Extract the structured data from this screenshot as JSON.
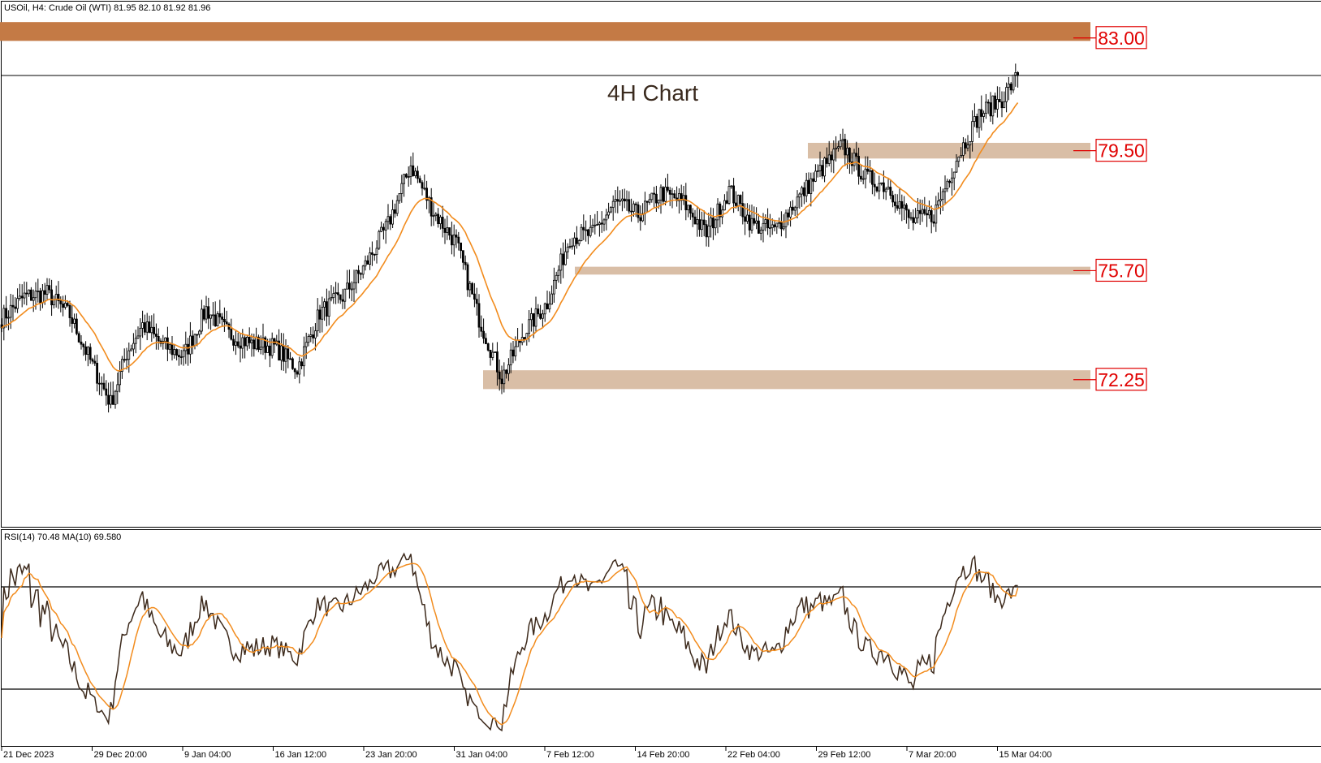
{
  "header": {
    "symbol_line": "USOil, H4:  Crude Oil (WTI)  81.95 82.10 81.92 81.96",
    "rsi_line": "RSI(14) 70.48 MA(10) 69.580"
  },
  "chart_data": {
    "type": "candlestick",
    "title": "4H Chart",
    "ylim": [
      68.0,
      84.25
    ],
    "x_tick_labels": [
      "21 Dec 2023",
      "29 Dec 20:00",
      "9 Jan 04:00",
      "16 Jan 12:00",
      "23 Jan 20:00",
      "31 Jan 04:00",
      "7 Feb 12:00",
      "14 Feb 20:00",
      "22 Feb 04:00",
      "29 Feb 12:00",
      "7 Mar 20:00",
      "15 Mar 04:00"
    ],
    "current_price": 81.96,
    "price_anchors": [
      [
        0,
        74.2
      ],
      [
        10,
        74.9
      ],
      [
        20,
        75.0
      ],
      [
        30,
        74.3
      ],
      [
        40,
        72.7
      ],
      [
        48,
        71.5
      ],
      [
        55,
        73.1
      ],
      [
        62,
        74.0
      ],
      [
        70,
        73.4
      ],
      [
        80,
        73.0
      ],
      [
        90,
        74.5
      ],
      [
        100,
        73.7
      ],
      [
        110,
        73.4
      ],
      [
        120,
        73.3
      ],
      [
        130,
        72.6
      ],
      [
        140,
        74.4
      ],
      [
        150,
        74.9
      ],
      [
        160,
        75.9
      ],
      [
        170,
        77.2
      ],
      [
        180,
        79.1
      ],
      [
        190,
        77.6
      ],
      [
        200,
        76.6
      ],
      [
        210,
        74.2
      ],
      [
        220,
        72.3
      ],
      [
        230,
        73.8
      ],
      [
        240,
        74.7
      ],
      [
        250,
        76.8
      ],
      [
        260,
        76.9
      ],
      [
        270,
        77.9
      ],
      [
        280,
        77.5
      ],
      [
        290,
        78.2
      ],
      [
        300,
        77.9
      ],
      [
        310,
        76.9
      ],
      [
        320,
        78.3
      ],
      [
        330,
        77.2
      ],
      [
        340,
        77.0
      ],
      [
        350,
        78.0
      ],
      [
        360,
        78.9
      ],
      [
        370,
        79.7
      ],
      [
        380,
        78.7
      ],
      [
        390,
        78.4
      ],
      [
        400,
        77.3
      ],
      [
        410,
        77.5
      ],
      [
        420,
        79.3
      ],
      [
        430,
        80.7
      ],
      [
        440,
        81.2
      ],
      [
        447,
        81.96
      ]
    ],
    "ema_period": 20,
    "levels": [
      {
        "label": "83.00",
        "band": [
          83.05,
          83.65
        ],
        "color": "#c47a45"
      },
      {
        "label": "79.50",
        "band": [
          79.3,
          79.8
        ],
        "color": "#d9bea6"
      },
      {
        "label": "75.70",
        "band": [
          75.6,
          75.85
        ],
        "color": "#d9bea6"
      },
      {
        "label": "72.25",
        "band": [
          71.95,
          72.55
        ],
        "color": "#d9bea6"
      }
    ],
    "rsi": {
      "label": "RSI(14)",
      "value": 70.48,
      "ma_label": "MA(10)",
      "ma_value": 69.58,
      "levels": [
        70,
        30
      ],
      "ylim": [
        10,
        90
      ]
    },
    "colors": {
      "candle": "#000000",
      "ma_line": "#f28c1e",
      "rsi_line": "#3d2a1c",
      "level_label": "#e00000",
      "title": "#3a2a1e"
    }
  }
}
